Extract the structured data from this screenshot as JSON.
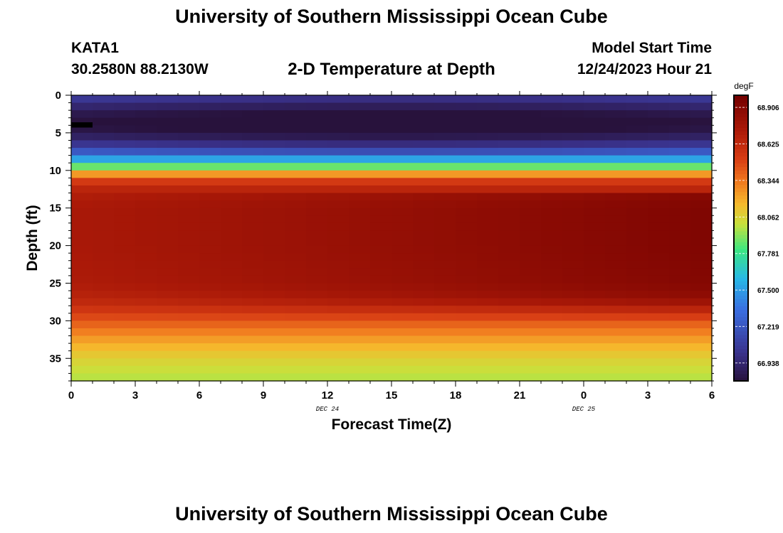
{
  "page": {
    "title": "University of Southern Mississippi Ocean Cube",
    "repeat_title": "University of Southern Mississippi Ocean Cube",
    "station": "KATA1",
    "coordinates": "30.2580N  88.2130W",
    "subtitle": "2-D Temperature at Depth",
    "model_start_label": "Model Start Time",
    "model_start_value": "12/24/2023 Hour 21"
  },
  "chart_data": {
    "type": "heatmap",
    "xlabel": "Forecast Time(Z)",
    "ylabel": "Depth (ft)",
    "x_tick_labels": [
      "0",
      "3",
      "6",
      "9",
      "12",
      "15",
      "18",
      "21",
      "0",
      "3",
      "6"
    ],
    "x_range": [
      0,
      30
    ],
    "date_labels": [
      {
        "at": 12,
        "text": "DEC 24"
      },
      {
        "at": 24,
        "text": "DEC 25"
      }
    ],
    "y_ticks": [
      0,
      5,
      10,
      15,
      20,
      25,
      30,
      35
    ],
    "y_range": [
      0,
      38
    ],
    "colorbar": {
      "unit": "degF",
      "ticks": [
        66.938,
        67.219,
        67.5,
        67.781,
        68.062,
        68.344,
        68.625,
        68.906
      ],
      "tick_labels": [
        "66.938",
        "67.219",
        "67.500",
        "67.781",
        "68.062",
        "68.344",
        "68.625",
        "68.906"
      ],
      "range": [
        66.8,
        69.0
      ]
    },
    "time_steps": [
      0,
      1,
      2,
      3,
      4,
      5,
      6,
      7,
      8,
      9,
      10,
      11,
      12,
      13,
      14,
      15,
      16,
      17,
      18,
      19,
      20,
      21,
      22,
      23,
      24,
      25,
      26,
      27,
      28,
      29,
      30
    ],
    "depth_profile": {
      "depth_ft": [
        0,
        1,
        2,
        3,
        4,
        5,
        6,
        7,
        8,
        9,
        10,
        11,
        12,
        13,
        15,
        20,
        25,
        27,
        28,
        29,
        30,
        31,
        32,
        33,
        34,
        35,
        36,
        37,
        38
      ],
      "temp_degF": [
        67.1,
        67.0,
        66.88,
        66.82,
        66.8,
        66.86,
        66.96,
        67.12,
        67.35,
        67.7,
        68.05,
        68.45,
        68.62,
        68.7,
        68.74,
        68.74,
        68.72,
        68.66,
        68.6,
        68.52,
        68.44,
        68.36,
        68.28,
        68.2,
        68.14,
        68.08,
        68.04,
        68.0,
        67.98
      ]
    },
    "deep_warming_degF_over_forecast": 0.2,
    "missing_cells": [
      {
        "time_from": 0,
        "time_to": 1,
        "depth_from": 3.6,
        "depth_to": 4.3
      }
    ]
  }
}
